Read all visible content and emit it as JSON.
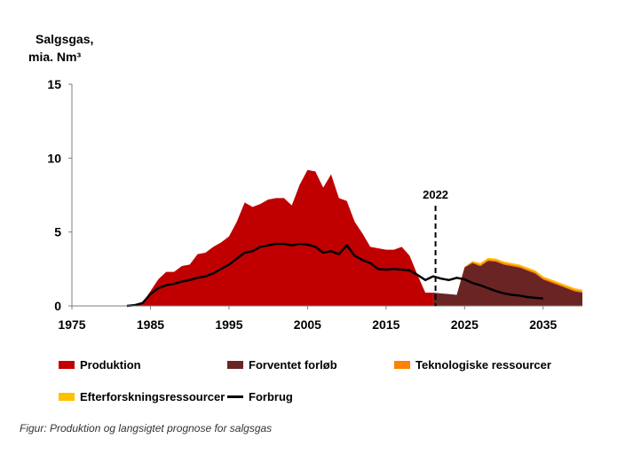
{
  "chart_data": {
    "type": "area",
    "ylabel_lines": [
      "Salgsgas,",
      "mia. Nm³"
    ],
    "ylim": [
      0,
      15
    ],
    "yticks": [
      0,
      5,
      10,
      15
    ],
    "xlim": [
      1975,
      2040
    ],
    "xticks": [
      1975,
      1985,
      1995,
      2005,
      2015,
      2025,
      2035
    ],
    "grid": false,
    "legend_position": "bottom",
    "annotation": {
      "label": "2022",
      "x": 2021.3
    },
    "series": [
      {
        "name": "Produktion",
        "kind": "area",
        "color": "#c00000",
        "x": [
          1982,
          1983,
          1984,
          1985,
          1986,
          1987,
          1988,
          1989,
          1990,
          1991,
          1992,
          1993,
          1994,
          1995,
          1996,
          1997,
          1998,
          1999,
          2000,
          2001,
          2002,
          2003,
          2004,
          2005,
          2006,
          2007,
          2008,
          2009,
          2010,
          2011,
          2012,
          2013,
          2014,
          2015,
          2016,
          2017,
          2018,
          2019,
          2020,
          2021
        ],
        "values": [
          0,
          0.05,
          0.2,
          1.0,
          1.8,
          2.3,
          2.3,
          2.7,
          2.8,
          3.5,
          3.6,
          4.0,
          4.3,
          4.7,
          5.7,
          7.0,
          6.7,
          6.9,
          7.2,
          7.3,
          7.3,
          6.8,
          8.2,
          9.2,
          9.1,
          8.0,
          8.9,
          7.3,
          7.1,
          5.7,
          4.9,
          4.0,
          3.9,
          3.8,
          3.8,
          4.0,
          3.4,
          2.1,
          0.9,
          0.9
        ]
      },
      {
        "name": "Forventet forløb",
        "kind": "area",
        "color": "#6b2424",
        "x": [
          2021,
          2022,
          2023,
          2024,
          2025,
          2026,
          2027,
          2028,
          2029,
          2030,
          2031,
          2032,
          2033,
          2034,
          2035,
          2036,
          2037,
          2038,
          2039,
          2040
        ],
        "values": [
          0.9,
          0.85,
          0.8,
          0.75,
          2.6,
          2.9,
          2.7,
          3.05,
          3.0,
          2.8,
          2.7,
          2.6,
          2.4,
          2.2,
          1.8,
          1.6,
          1.4,
          1.2,
          1.0,
          0.9
        ]
      },
      {
        "name": "Teknologiske ressourcer",
        "kind": "area",
        "color": "#ff7f00",
        "x": [
          2021,
          2022,
          2023,
          2024,
          2025,
          2026,
          2027,
          2028,
          2029,
          2030,
          2031,
          2032,
          2033,
          2034,
          2035,
          2036,
          2037,
          2038,
          2039,
          2040
        ],
        "values": [
          0,
          0,
          0,
          0,
          0.05,
          0.08,
          0.1,
          0.1,
          0.1,
          0.1,
          0.1,
          0.1,
          0.1,
          0.1,
          0.1,
          0.1,
          0.1,
          0.1,
          0.1,
          0.1
        ]
      },
      {
        "name": "Efterforskningsressourcer",
        "kind": "area",
        "color": "#ffc000",
        "x": [
          2021,
          2022,
          2023,
          2024,
          2025,
          2026,
          2027,
          2028,
          2029,
          2030,
          2031,
          2032,
          2033,
          2034,
          2035,
          2036,
          2037,
          2038,
          2039,
          2040
        ],
        "values": [
          0,
          0,
          0,
          0,
          0,
          0.05,
          0.1,
          0.1,
          0.1,
          0.1,
          0.1,
          0.1,
          0.1,
          0.1,
          0.1,
          0.1,
          0.1,
          0.1,
          0.1,
          0.1
        ]
      },
      {
        "name": "Forbrug",
        "kind": "line",
        "color": "#000000",
        "x": [
          1982,
          1983,
          1984,
          1985,
          1986,
          1987,
          1988,
          1989,
          1990,
          1991,
          1992,
          1993,
          1994,
          1995,
          1996,
          1997,
          1998,
          1999,
          2000,
          2001,
          2002,
          2003,
          2004,
          2005,
          2006,
          2007,
          2008,
          2009,
          2010,
          2011,
          2012,
          2013,
          2014,
          2015,
          2016,
          2017,
          2018,
          2019,
          2020,
          2021,
          2022,
          2023,
          2024,
          2025,
          2026,
          2027,
          2028,
          2029,
          2030,
          2031,
          2032,
          2033,
          2034,
          2035
        ],
        "values": [
          0,
          0.05,
          0.2,
          0.8,
          1.2,
          1.4,
          1.5,
          1.65,
          1.75,
          1.9,
          2.0,
          2.2,
          2.5,
          2.8,
          3.2,
          3.6,
          3.7,
          4.0,
          4.1,
          4.2,
          4.2,
          4.1,
          4.2,
          4.15,
          4.0,
          3.6,
          3.7,
          3.5,
          4.1,
          3.4,
          3.1,
          2.9,
          2.5,
          2.45,
          2.5,
          2.45,
          2.4,
          2.1,
          1.75,
          2.0,
          1.85,
          1.75,
          1.9,
          1.8,
          1.55,
          1.4,
          1.2,
          1.0,
          0.85,
          0.75,
          0.7,
          0.6,
          0.55,
          0.5
        ]
      }
    ]
  },
  "legend": [
    {
      "label": "Produktion",
      "kind": "swatch",
      "color": "#c00000"
    },
    {
      "label": "Forventet forløb",
      "kind": "swatch",
      "color": "#6b2424"
    },
    {
      "label": "Teknologiske ressourcer",
      "kind": "swatch",
      "color": "#ff7f00"
    },
    {
      "label": "Efterforskningsressourcer",
      "kind": "swatch",
      "color": "#ffc000"
    },
    {
      "label": "Forbrug",
      "kind": "line",
      "color": "#000000"
    }
  ],
  "caption": "Figur: Produktion og langsigtet prognose for salgsgas"
}
